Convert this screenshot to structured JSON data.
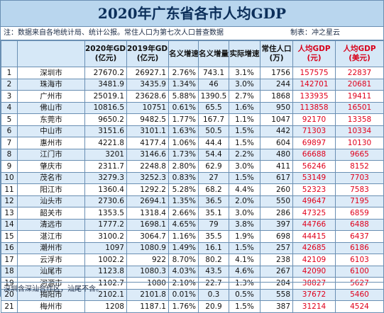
{
  "title": "2020年广东省各市人均GDP",
  "note": "注：数据来自各地统计局、统计公报。常住人口为第七次人口普查数据",
  "author": "制表：冲之星云",
  "footer": "深圳含深汕合作区，汕尾不含。",
  "headers": {
    "gdp2020": "2020年GDP",
    "gdp2020_unit": "(亿元)",
    "gdp2019": "2019年GDP",
    "gdp2019_unit": "(亿元)",
    "nominal_growth": "名义增速",
    "nominal_increase": "名义增量",
    "real_growth": "实际增速",
    "population": "常住人口",
    "population_unit": "(万)",
    "per_capita_cny": "人均GDP",
    "per_capita_cny_unit": "(元)",
    "per_capita_usd": "人均GDP",
    "per_capita_usd_unit": "(美元)"
  },
  "rows": [
    [
      "1",
      "深圳市",
      "27670.2",
      "26927.1",
      "2.76%",
      "743.1",
      "3.1%",
      "1756",
      "157575",
      "22837"
    ],
    [
      "2",
      "珠海市",
      "3481.9",
      "3435.9",
      "1.34%",
      "46",
      "3.0%",
      "244",
      "142701",
      "20681"
    ],
    [
      "3",
      "广州市",
      "25019.1",
      "23628.6",
      "5.88%",
      "1390.5",
      "2.7%",
      "1868",
      "133935",
      "19411"
    ],
    [
      "4",
      "佛山市",
      "10816.5",
      "10751",
      "0.61%",
      "65.5",
      "1.6%",
      "950",
      "113858",
      "16501"
    ],
    [
      "5",
      "东莞市",
      "9650.2",
      "9482.5",
      "1.77%",
      "167.7",
      "1.1%",
      "1047",
      "92170",
      "13358"
    ],
    [
      "6",
      "中山市",
      "3151.6",
      "3101.1",
      "1.63%",
      "50.5",
      "1.5%",
      "442",
      "71303",
      "10334"
    ],
    [
      "7",
      "惠州市",
      "4221.8",
      "4177.4",
      "1.06%",
      "44.4",
      "1.5%",
      "604",
      "69897",
      "10130"
    ],
    [
      "8",
      "江门市",
      "3201",
      "3146.6",
      "1.73%",
      "54.4",
      "2.2%",
      "480",
      "66688",
      "9665"
    ],
    [
      "9",
      "肇庆市",
      "2311.7",
      "2248.8",
      "2.80%",
      "62.9",
      "3.0%",
      "411",
      "56246",
      "8152"
    ],
    [
      "10",
      "茂名市",
      "3279.3",
      "3252.3",
      "0.83%",
      "27",
      "1.5%",
      "617",
      "53149",
      "7703"
    ],
    [
      "11",
      "阳江市",
      "1360.4",
      "1292.2",
      "5.28%",
      "68.2",
      "4.4%",
      "260",
      "52323",
      "7583"
    ],
    [
      "12",
      "汕头市",
      "2730.6",
      "2694.1",
      "1.35%",
      "36.5",
      "2.0%",
      "550",
      "49647",
      "7195"
    ],
    [
      "13",
      "韶关市",
      "1353.5",
      "1318.4",
      "2.66%",
      "35.1",
      "3.0%",
      "286",
      "47325",
      "6859"
    ],
    [
      "14",
      "清远市",
      "1777.2",
      "1698.1",
      "4.65%",
      "79",
      "3.8%",
      "397",
      "44766",
      "6488"
    ],
    [
      "15",
      "湛江市",
      "3100.2",
      "3064.7",
      "1.16%",
      "35.5",
      "1.9%",
      "698",
      "44415",
      "6437"
    ],
    [
      "16",
      "潮州市",
      "1097",
      "1080.9",
      "1.49%",
      "16.1",
      "1.5%",
      "257",
      "42685",
      "6186"
    ],
    [
      "17",
      "云浮市",
      "1002.2",
      "922",
      "8.70%",
      "80.2",
      "4.1%",
      "238",
      "42109",
      "6103"
    ],
    [
      "18",
      "汕尾市",
      "1123.8",
      "1080.3",
      "4.03%",
      "43.5",
      "4.6%",
      "267",
      "42090",
      "6100"
    ],
    [
      "19",
      "河源市",
      "1102.7",
      "1080",
      "2.10%",
      "22.7",
      "1.3%",
      "284",
      "38827",
      "5627"
    ],
    [
      "20",
      "揭阳市",
      "2102.1",
      "2101.8",
      "0.01%",
      "0.3",
      "0.5%",
      "558",
      "37672",
      "5460"
    ],
    [
      "21",
      "梅州市",
      "1208",
      "1187.1",
      "1.76%",
      "20.9",
      "1.5%",
      "387",
      "31214",
      "4524"
    ]
  ]
}
